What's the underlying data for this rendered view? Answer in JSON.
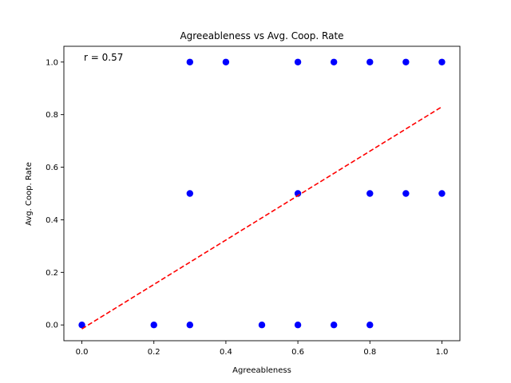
{
  "chart_data": {
    "type": "scatter",
    "title": "Agreeableness vs Avg. Coop. Rate",
    "xlabel": "Agreeableness",
    "ylabel": "Avg. Coop. Rate",
    "xlim": [
      -0.05,
      1.05
    ],
    "ylim": [
      -0.06,
      1.06
    ],
    "xticks": [
      0.0,
      0.2,
      0.4,
      0.6,
      0.8,
      1.0
    ],
    "yticks": [
      0.0,
      0.2,
      0.4,
      0.6,
      0.8,
      1.0
    ],
    "xtick_labels": [
      "0.0",
      "0.2",
      "0.4",
      "0.6",
      "0.8",
      "1.0"
    ],
    "ytick_labels": [
      "0.0",
      "0.2",
      "0.4",
      "0.6",
      "0.8",
      "1.0"
    ],
    "grid": false,
    "points": {
      "color": "#0000ff",
      "x": [
        0.0,
        0.2,
        0.3,
        0.3,
        0.3,
        0.4,
        0.5,
        0.6,
        0.6,
        0.6,
        0.7,
        0.7,
        0.8,
        0.8,
        0.8,
        0.9,
        0.9,
        1.0,
        1.0
      ],
      "y": [
        0.0,
        0.0,
        0.0,
        0.5,
        1.0,
        1.0,
        0.0,
        0.0,
        0.5,
        1.0,
        0.0,
        1.0,
        0.0,
        0.5,
        1.0,
        0.5,
        1.0,
        0.5,
        1.0
      ]
    },
    "trendline": {
      "color": "#ff0000",
      "style": "dashed",
      "x": [
        0.0,
        1.0
      ],
      "y": [
        -0.015,
        0.83
      ]
    },
    "annotation": "r = 0.57"
  }
}
